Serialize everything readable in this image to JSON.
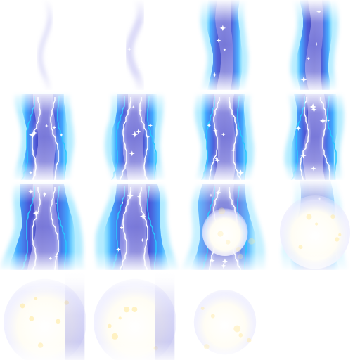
{
  "sprite_sheet": {
    "grid": {
      "columns": 4,
      "rows": 4
    },
    "palette": {
      "background": "#ffffff",
      "deep_blue": "#3c3fb8",
      "indigo": "#5a5fd0",
      "violet_mist": "#8f8fe0",
      "lavender": "#c9c8f4",
      "cyan_glow": "#28c8ff",
      "electric_blue": "#2e7cff",
      "white_core": "#ffffff",
      "gold_spark": "#ffe9a0"
    },
    "frames": [
      {
        "index": 1,
        "stage": "wisp"
      },
      {
        "index": 2,
        "stage": "wisp"
      },
      {
        "index": 3,
        "stage": "column"
      },
      {
        "index": 4,
        "stage": "column"
      },
      {
        "index": 5,
        "stage": "column-lightning"
      },
      {
        "index": 6,
        "stage": "column-lightning"
      },
      {
        "index": 7,
        "stage": "column-lightning"
      },
      {
        "index": 8,
        "stage": "column-lightning"
      },
      {
        "index": 9,
        "stage": "burst"
      },
      {
        "index": 10,
        "stage": "burst"
      },
      {
        "index": 11,
        "stage": "burst-fade"
      },
      {
        "index": 12,
        "stage": "burst-fade"
      },
      {
        "index": 13,
        "stage": "flash"
      },
      {
        "index": 14,
        "stage": "flash"
      },
      {
        "index": 15,
        "stage": "flash-fade"
      },
      {
        "index": 16,
        "stage": "empty"
      }
    ]
  }
}
